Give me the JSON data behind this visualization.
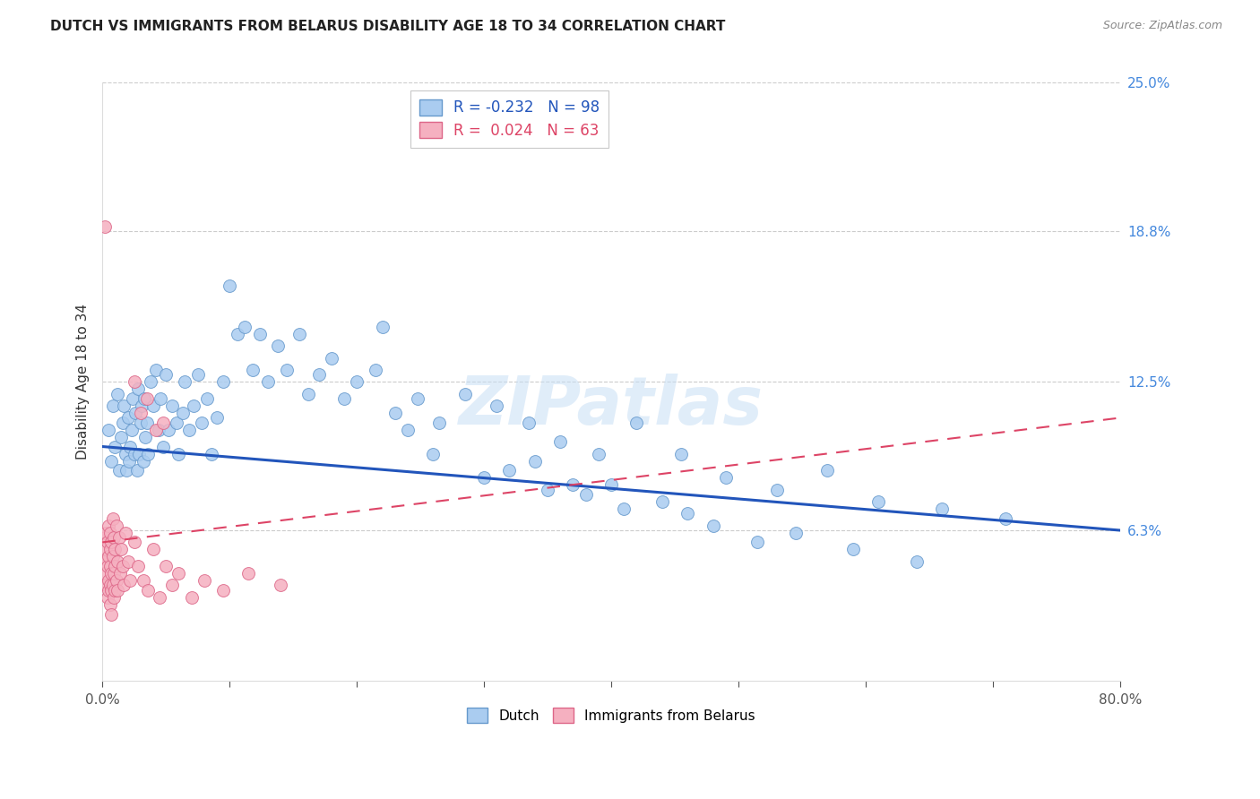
{
  "title": "DUTCH VS IMMIGRANTS FROM BELARUS DISABILITY AGE 18 TO 34 CORRELATION CHART",
  "source": "Source: ZipAtlas.com",
  "ylabel": "Disability Age 18 to 34",
  "x_min": 0.0,
  "x_max": 0.8,
  "y_min": 0.0,
  "y_max": 0.25,
  "x_ticks": [
    0.0,
    0.1,
    0.2,
    0.3,
    0.4,
    0.5,
    0.6,
    0.7,
    0.8
  ],
  "y_ticks_right": [
    0.063,
    0.125,
    0.188,
    0.25
  ],
  "y_tick_labels_right": [
    "6.3%",
    "12.5%",
    "18.8%",
    "25.0%"
  ],
  "dutch_color": "#aaccf0",
  "dutch_edge_color": "#6699cc",
  "belarus_color": "#f5b0c0",
  "belarus_edge_color": "#dd6688",
  "dutch_line_color": "#2255bb",
  "belarus_line_color": "#dd4466",
  "watermark": "ZIPatlas",
  "dutch_R": -0.232,
  "dutch_N": 98,
  "belarus_R": 0.024,
  "belarus_N": 63,
  "dutch_line_start_y": 0.098,
  "dutch_line_end_y": 0.063,
  "belarus_line_start_y": 0.058,
  "belarus_line_end_y": 0.11,
  "dutch_x": [
    0.005,
    0.007,
    0.008,
    0.01,
    0.012,
    0.013,
    0.015,
    0.016,
    0.017,
    0.018,
    0.019,
    0.02,
    0.021,
    0.022,
    0.023,
    0.024,
    0.025,
    0.026,
    0.027,
    0.028,
    0.029,
    0.03,
    0.031,
    0.032,
    0.033,
    0.034,
    0.035,
    0.036,
    0.038,
    0.04,
    0.042,
    0.044,
    0.046,
    0.048,
    0.05,
    0.052,
    0.055,
    0.058,
    0.06,
    0.063,
    0.065,
    0.068,
    0.072,
    0.075,
    0.078,
    0.082,
    0.086,
    0.09,
    0.095,
    0.1,
    0.106,
    0.112,
    0.118,
    0.124,
    0.13,
    0.138,
    0.145,
    0.155,
    0.162,
    0.17,
    0.18,
    0.19,
    0.2,
    0.215,
    0.23,
    0.248,
    0.265,
    0.285,
    0.31,
    0.335,
    0.36,
    0.39,
    0.42,
    0.455,
    0.49,
    0.53,
    0.57,
    0.61,
    0.66,
    0.71,
    0.22,
    0.24,
    0.26,
    0.3,
    0.32,
    0.35,
    0.38,
    0.4,
    0.44,
    0.46,
    0.34,
    0.37,
    0.41,
    0.48,
    0.515,
    0.545,
    0.59,
    0.64
  ],
  "dutch_y": [
    0.105,
    0.092,
    0.115,
    0.098,
    0.12,
    0.088,
    0.102,
    0.108,
    0.115,
    0.095,
    0.088,
    0.11,
    0.092,
    0.098,
    0.105,
    0.118,
    0.095,
    0.112,
    0.088,
    0.122,
    0.095,
    0.108,
    0.115,
    0.092,
    0.118,
    0.102,
    0.108,
    0.095,
    0.125,
    0.115,
    0.13,
    0.105,
    0.118,
    0.098,
    0.128,
    0.105,
    0.115,
    0.108,
    0.095,
    0.112,
    0.125,
    0.105,
    0.115,
    0.128,
    0.108,
    0.118,
    0.095,
    0.11,
    0.125,
    0.165,
    0.145,
    0.148,
    0.13,
    0.145,
    0.125,
    0.14,
    0.13,
    0.145,
    0.12,
    0.128,
    0.135,
    0.118,
    0.125,
    0.13,
    0.112,
    0.118,
    0.108,
    0.12,
    0.115,
    0.108,
    0.1,
    0.095,
    0.108,
    0.095,
    0.085,
    0.08,
    0.088,
    0.075,
    0.072,
    0.068,
    0.148,
    0.105,
    0.095,
    0.085,
    0.088,
    0.08,
    0.078,
    0.082,
    0.075,
    0.07,
    0.092,
    0.082,
    0.072,
    0.065,
    0.058,
    0.062,
    0.055,
    0.05
  ],
  "belarus_x": [
    0.001,
    0.002,
    0.002,
    0.003,
    0.003,
    0.003,
    0.004,
    0.004,
    0.004,
    0.005,
    0.005,
    0.005,
    0.005,
    0.006,
    0.006,
    0.006,
    0.006,
    0.006,
    0.007,
    0.007,
    0.007,
    0.007,
    0.008,
    0.008,
    0.008,
    0.009,
    0.009,
    0.009,
    0.01,
    0.01,
    0.01,
    0.011,
    0.011,
    0.012,
    0.012,
    0.013,
    0.014,
    0.015,
    0.016,
    0.017,
    0.018,
    0.02,
    0.022,
    0.025,
    0.028,
    0.032,
    0.036,
    0.04,
    0.045,
    0.05,
    0.055,
    0.06,
    0.07,
    0.08,
    0.095,
    0.115,
    0.14,
    0.025,
    0.03,
    0.035,
    0.042,
    0.048,
    0.002
  ],
  "belarus_y": [
    0.05,
    0.06,
    0.045,
    0.055,
    0.04,
    0.062,
    0.048,
    0.035,
    0.058,
    0.042,
    0.052,
    0.038,
    0.065,
    0.048,
    0.04,
    0.055,
    0.032,
    0.062,
    0.045,
    0.038,
    0.058,
    0.028,
    0.052,
    0.04,
    0.068,
    0.045,
    0.035,
    0.06,
    0.048,
    0.038,
    0.055,
    0.042,
    0.065,
    0.05,
    0.038,
    0.06,
    0.045,
    0.055,
    0.048,
    0.04,
    0.062,
    0.05,
    0.042,
    0.058,
    0.048,
    0.042,
    0.038,
    0.055,
    0.035,
    0.048,
    0.04,
    0.045,
    0.035,
    0.042,
    0.038,
    0.045,
    0.04,
    0.125,
    0.112,
    0.118,
    0.105,
    0.108,
    0.19
  ]
}
